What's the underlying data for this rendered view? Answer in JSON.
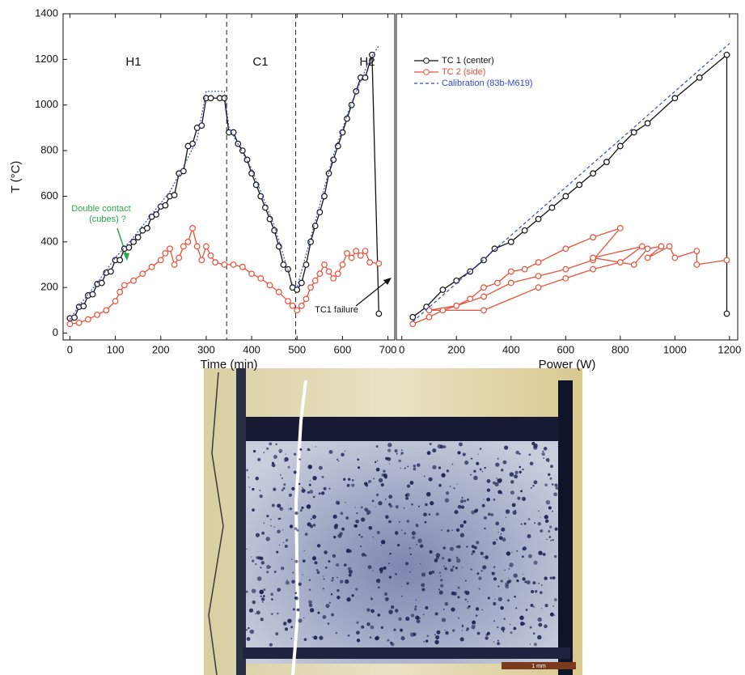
{
  "chart_data": [
    {
      "type": "line",
      "xlabel": "Time (min)",
      "ylabel": "T (°C)",
      "xlim": [
        -15,
        715
      ],
      "xticks": [
        0,
        100,
        200,
        300,
        400,
        500,
        600,
        700
      ],
      "ylim": [
        -30,
        1400
      ],
      "yticks": [
        0,
        200,
        400,
        600,
        800,
        1000,
        1200,
        1400
      ],
      "vlines": [
        345,
        497
      ],
      "annotations": [
        "H1",
        "C1",
        "H2",
        "Double contact",
        "(cubes) ?",
        "TC1 failure"
      ],
      "series": [
        {
          "color": "#111111",
          "marker": true,
          "linestyle": "solid",
          "x": [
            0,
            10,
            20,
            30,
            40,
            50,
            60,
            70,
            80,
            90,
            100,
            110,
            120,
            130,
            140,
            150,
            160,
            170,
            180,
            190,
            200,
            210,
            220,
            230,
            240,
            250,
            260,
            270,
            280,
            290,
            300,
            310,
            330,
            340,
            350,
            360,
            370,
            380,
            390,
            400,
            410,
            420,
            430,
            440,
            450,
            460,
            470,
            480,
            490,
            500,
            510,
            520,
            530,
            540,
            550,
            560,
            570,
            580,
            590,
            600,
            610,
            620,
            630,
            640,
            650,
            665,
            680
          ],
          "values": [
            65,
            68,
            115,
            118,
            165,
            170,
            215,
            220,
            265,
            270,
            320,
            320,
            370,
            375,
            400,
            420,
            450,
            460,
            510,
            520,
            555,
            560,
            600,
            605,
            700,
            710,
            820,
            830,
            900,
            910,
            1030,
            1030,
            1030,
            1030,
            880,
            880,
            830,
            800,
            760,
            700,
            650,
            600,
            550,
            500,
            450,
            380,
            300,
            280,
            200,
            190,
            220,
            300,
            400,
            470,
            530,
            600,
            700,
            760,
            820,
            880,
            940,
            1000,
            1060,
            1120,
            1120,
            1220,
            85
          ]
        },
        {
          "color": "#e8503a",
          "marker": true,
          "linestyle": "solid",
          "x": [
            0,
            20,
            40,
            60,
            80,
            100,
            110,
            120,
            140,
            160,
            180,
            200,
            210,
            220,
            230,
            240,
            250,
            260,
            270,
            280,
            290,
            300,
            310,
            320,
            340,
            360,
            380,
            400,
            420,
            440,
            460,
            480,
            490,
            500,
            510,
            520,
            530,
            540,
            550,
            560,
            570,
            580,
            590,
            600,
            610,
            620,
            630,
            640,
            650,
            660,
            680
          ],
          "values": [
            40,
            45,
            60,
            80,
            100,
            140,
            180,
            210,
            230,
            260,
            290,
            320,
            350,
            370,
            300,
            330,
            380,
            400,
            460,
            380,
            320,
            380,
            340,
            310,
            300,
            300,
            290,
            260,
            240,
            210,
            180,
            140,
            120,
            100,
            120,
            150,
            200,
            230,
            260,
            300,
            270,
            240,
            260,
            300,
            350,
            330,
            360,
            340,
            360,
            310,
            305
          ]
        },
        {
          "color": "#3548c8",
          "marker": false,
          "linestyle": "dotted",
          "x": [
            0,
            20,
            60,
            100,
            140,
            180,
            220,
            250,
            280,
            300,
            340,
            350,
            400,
            450,
            490,
            500,
            540,
            580,
            620,
            660,
            680
          ],
          "values": [
            60,
            120,
            220,
            330,
            420,
            520,
            620,
            730,
            850,
            1060,
            1060,
            900,
            720,
            470,
            210,
            200,
            490,
            780,
            1010,
            1200,
            1260
          ]
        }
      ]
    },
    {
      "type": "line",
      "xlabel": "Power (W)",
      "xlim": [
        -20,
        1230
      ],
      "xticks": [
        0,
        200,
        400,
        600,
        800,
        1000,
        1200
      ],
      "ylim": [
        -30,
        1400
      ],
      "legend": "upper left",
      "series": [
        {
          "name": "TC 1 (center)",
          "color": "#111111",
          "marker": true,
          "linestyle": "solid",
          "x": [
            40,
            90,
            150,
            200,
            250,
            300,
            340,
            400,
            450,
            500,
            550,
            600,
            650,
            700,
            750,
            800,
            850,
            900,
            1000,
            1090,
            1190,
            1190
          ],
          "values": [
            70,
            115,
            190,
            230,
            270,
            320,
            370,
            400,
            450,
            500,
            550,
            600,
            650,
            700,
            750,
            820,
            880,
            920,
            1030,
            1120,
            1220,
            85
          ]
        },
        {
          "name": "TC 2 (side)",
          "color": "#e8503a",
          "marker": true,
          "linestyle": "solid",
          "x": [
            40,
            100,
            150,
            200,
            250,
            300,
            350,
            400,
            450,
            500,
            600,
            700,
            800,
            700,
            600,
            500,
            400,
            300,
            200,
            100,
            300,
            500,
            600,
            700,
            800,
            880,
            700,
            850,
            900,
            950,
            900,
            980,
            1000,
            1080,
            1080,
            1190
          ],
          "values": [
            40,
            70,
            100,
            120,
            150,
            200,
            220,
            270,
            280,
            310,
            370,
            420,
            460,
            320,
            280,
            250,
            220,
            160,
            120,
            100,
            100,
            200,
            240,
            280,
            310,
            380,
            330,
            300,
            370,
            380,
            330,
            380,
            330,
            360,
            300,
            320
          ]
        },
        {
          "name": "Calibration (83b-M619)",
          "color": "#3548c8",
          "marker": false,
          "linestyle": "dashed",
          "x": [
            40,
            1200
          ],
          "values": [
            50,
            1270
          ]
        }
      ]
    }
  ],
  "image": {
    "scale_bar": "1 mm"
  }
}
